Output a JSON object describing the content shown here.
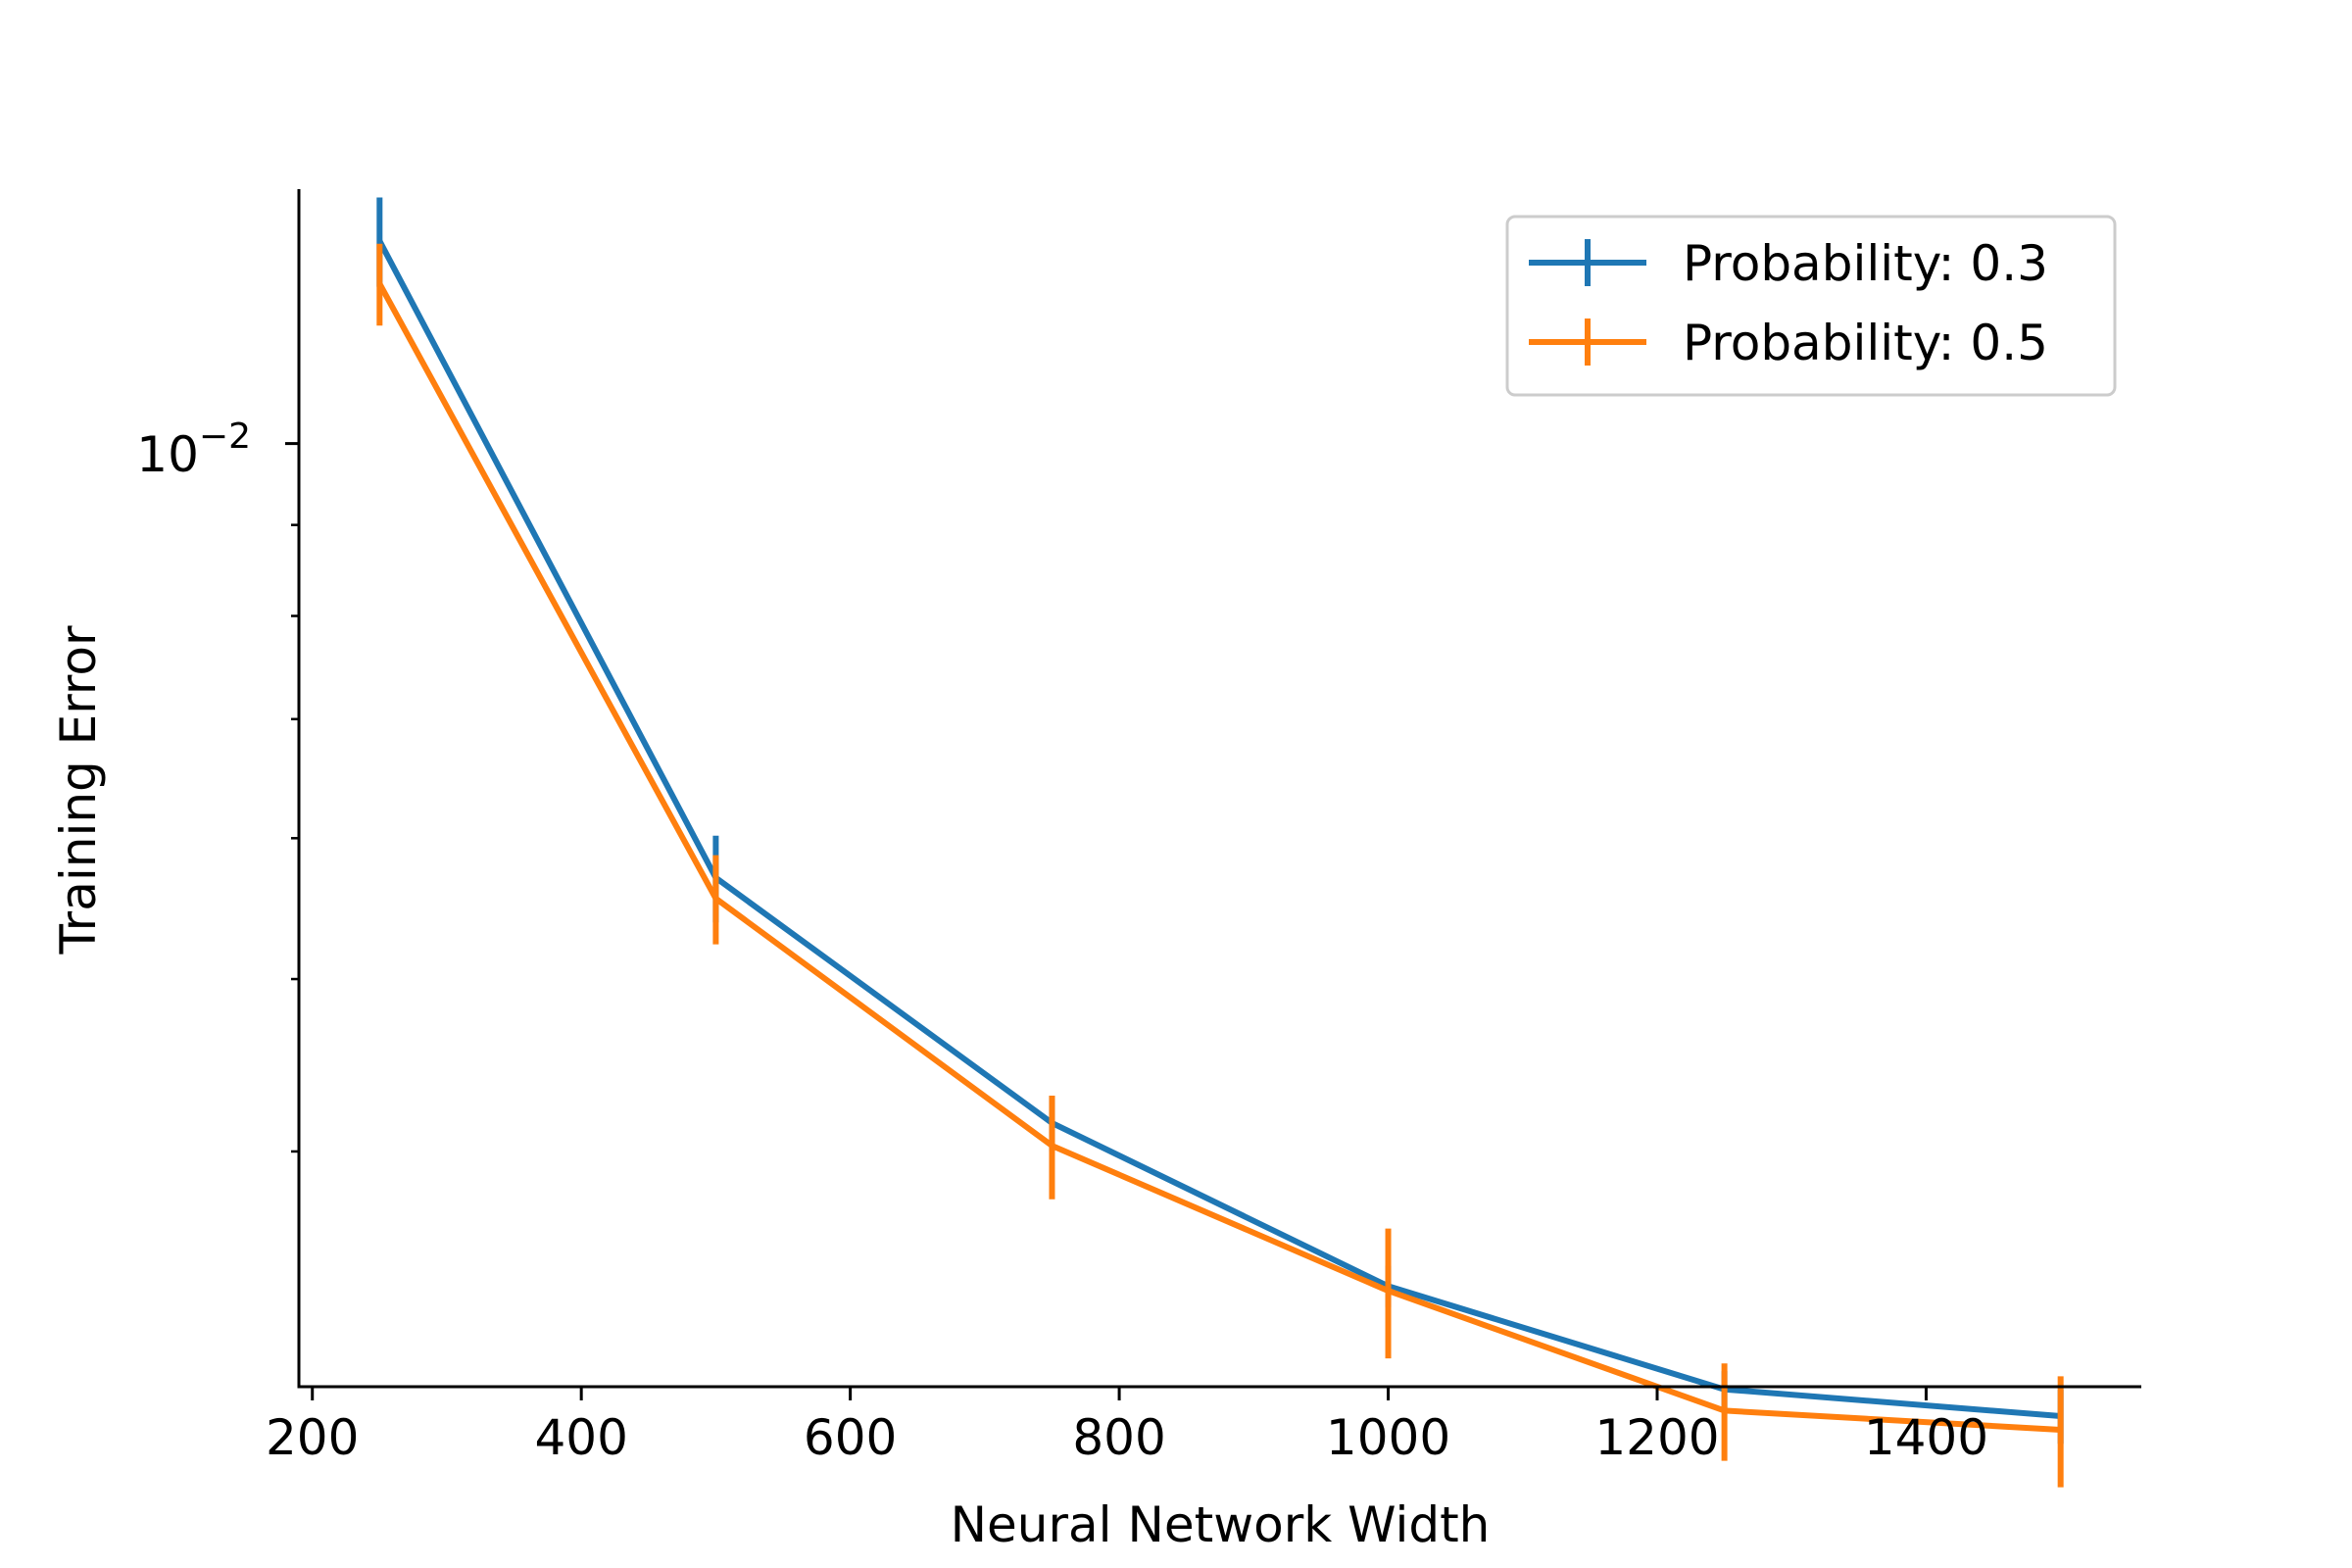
{
  "chart_data": {
    "type": "line",
    "xlabel": "Neural Network Width",
    "ylabel": "Training Error",
    "x": [
      250,
      500,
      750,
      1000,
      1250,
      1500
    ],
    "xlim": [
      190,
      1560
    ],
    "xticks": [
      200,
      400,
      600,
      800,
      1000,
      1200,
      1400
    ],
    "xtick_labels": [
      "200",
      "400",
      "600",
      "800",
      "1000",
      "1200",
      "1400"
    ],
    "yscale": "log",
    "ylim": [
      0.00295,
      0.0139
    ],
    "yticks_major": [
      0.01
    ],
    "ytick_label_base": "10",
    "ytick_label_exponent": "−2",
    "yticks_minor": [
      0.004,
      0.005,
      0.006,
      0.007,
      0.008,
      0.009
    ],
    "grid": false,
    "legend_position": "upper right",
    "series": [
      {
        "name": "Probability: 0.3",
        "color": "#1f77b4",
        "values": [
          0.013,
          0.0057,
          0.00415,
          0.00336,
          0.00294,
          0.00284
        ],
        "errors": [
          0.00075,
          0.00032,
          0.00015,
          9e-05,
          7e-05,
          0.0001
        ]
      },
      {
        "name": "Probability: 0.5",
        "color": "#ff7f0e",
        "values": [
          0.0123,
          0.00555,
          0.00403,
          0.00334,
          0.00286,
          0.00279
        ],
        "errors": [
          0.00065,
          0.00032,
          0.00027,
          0.00028,
          0.00018,
          0.0002
        ]
      }
    ]
  }
}
